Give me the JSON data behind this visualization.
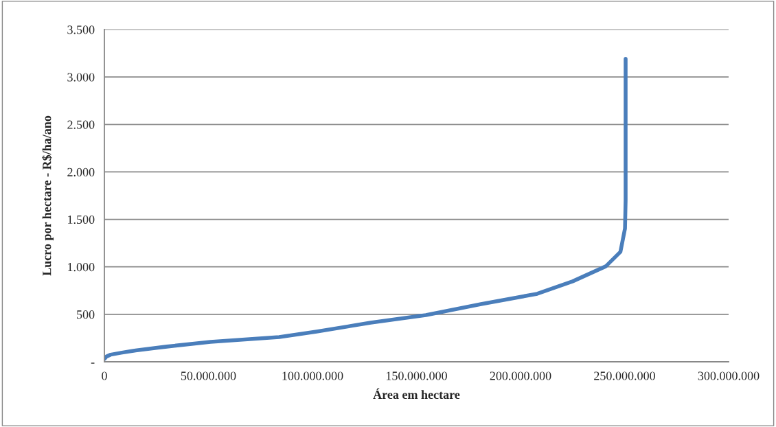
{
  "chart_data": {
    "type": "line",
    "xlabel": "Área em hectare",
    "ylabel": "Lucro por hectare - R$/ha/ano",
    "series": [
      {
        "color": "#4a7ebb",
        "x": [
          0,
          1000000,
          3000000,
          8000000,
          15000000,
          30000000,
          51000000,
          84000000,
          102000000,
          128000000,
          154500000,
          181000000,
          208000000,
          225000000,
          241000000,
          248000000,
          250200000,
          250500000,
          250500000
        ],
        "values": [
          30,
          55,
          75,
          95,
          120,
          160,
          210,
          260,
          318,
          412,
          492,
          608,
          716,
          847,
          1006,
          1158,
          1404,
          1700,
          3190
        ]
      }
    ],
    "xlim": [
      0,
      300000000
    ],
    "xticks": [
      0,
      {
        "value": 50000000,
        "label": "50.000.000"
      },
      {
        "value": 100000000,
        "label": "100.000.000"
      },
      {
        "value": 150000000,
        "label": "150.000.000"
      },
      {
        "value": 200000000,
        "label": "200.000.000"
      },
      {
        "value": 250000000,
        "label": "250.000.000"
      },
      {
        "value": 300000000,
        "label": "300.000.000"
      }
    ],
    "ylim": [
      0,
      3500
    ],
    "yticks": [
      {
        "value": 0,
        "label": "-"
      },
      500,
      {
        "value": 1000,
        "label": "1.000"
      },
      {
        "value": 1500,
        "label": "1.500"
      },
      {
        "value": 2000,
        "label": "2.000"
      },
      {
        "value": 2500,
        "label": "2.500"
      },
      {
        "value": 3000,
        "label": "3.000"
      },
      {
        "value": 3500,
        "label": "3.500"
      }
    ],
    "grid": "y",
    "marker": "none",
    "line_style": "solid"
  }
}
